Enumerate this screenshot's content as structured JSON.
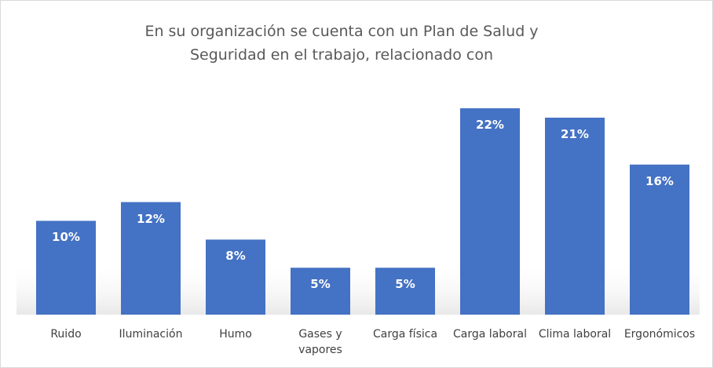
{
  "chart_data": {
    "type": "bar",
    "title": "En su organización se cuenta con un Plan de Salud y Seguridad en el trabajo, relacionado con",
    "categories": [
      "Ruido",
      "Iluminación",
      "Humo",
      "Gases y vapores",
      "Carga física",
      "Carga laboral",
      "Clima laboral",
      "Ergonómicos"
    ],
    "values": [
      10,
      12,
      8,
      5,
      5,
      22,
      21,
      16
    ],
    "value_labels": [
      "10%",
      "12%",
      "8%",
      "5%",
      "5%",
      "22%",
      "21%",
      "16%"
    ],
    "color": "#4472c4"
  }
}
